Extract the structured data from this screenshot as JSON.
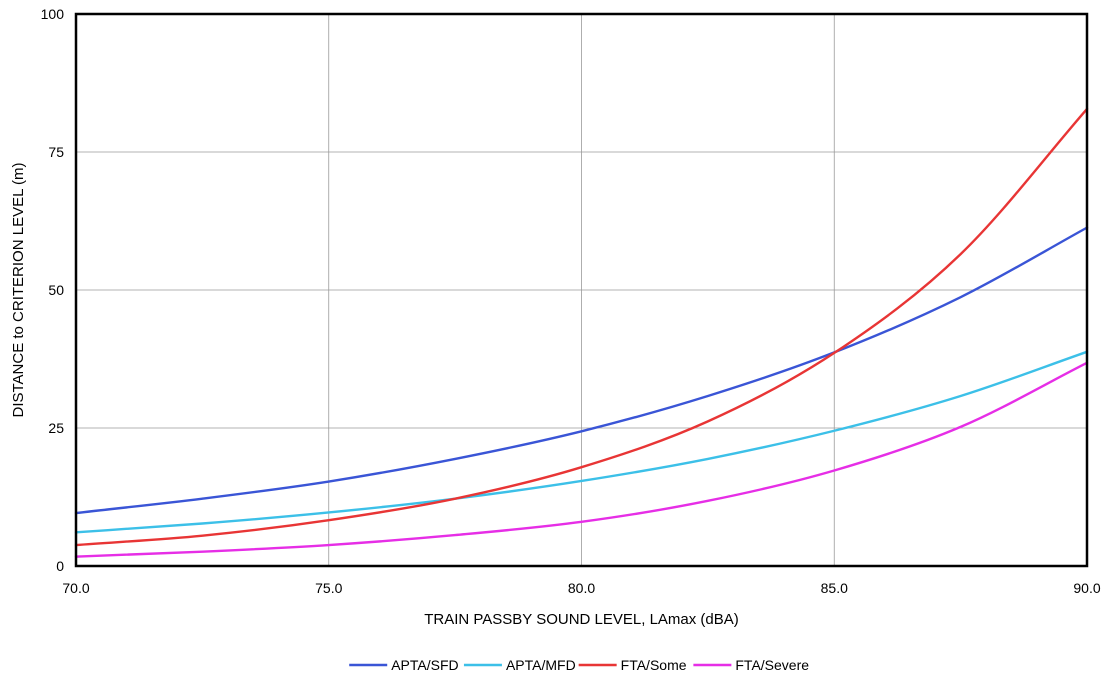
{
  "chart_data": {
    "type": "line",
    "title": "",
    "xlabel": "TRAIN PASSBY SOUND LEVEL, LAmax (dBA)",
    "ylabel": "DISTANCE to CRITERION LEVEL (m)",
    "xlim": [
      70,
      90
    ],
    "ylim": [
      0,
      100
    ],
    "xticks": [
      70,
      75,
      80,
      85,
      90
    ],
    "xtick_labels": [
      "70.0",
      "75.0",
      "80.0",
      "85.0",
      "90.0"
    ],
    "yticks": [
      0,
      25,
      50,
      75,
      100
    ],
    "ytick_labels": [
      "0",
      "25",
      "50",
      "75",
      "100"
    ],
    "grid": true,
    "legend_position": "bottom",
    "series": [
      {
        "name": "APTA/SFD",
        "color": "#3a55d6",
        "x": [
          70,
          72.5,
          75,
          77.5,
          80,
          82.5,
          85,
          87.5,
          90
        ],
        "y": [
          9.6,
          12.2,
          15.3,
          19.4,
          24.4,
          30.8,
          38.7,
          48.7,
          61.3
        ]
      },
      {
        "name": "APTA/MFD",
        "color": "#3cc0e8",
        "x": [
          70,
          72.5,
          75,
          77.5,
          80,
          82.5,
          85,
          87.5,
          90
        ],
        "y": [
          6.1,
          7.7,
          9.7,
          12.2,
          15.4,
          19.4,
          24.5,
          30.8,
          38.8
        ]
      },
      {
        "name": "FTA/Some",
        "color": "#e83535",
        "x": [
          70,
          72.5,
          75,
          77.5,
          80,
          82.5,
          85,
          87.5,
          90
        ],
        "y": [
          3.8,
          5.5,
          8.3,
          12.2,
          17.9,
          26.2,
          38.6,
          56.5,
          82.8
        ]
      },
      {
        "name": "FTA/Severe",
        "color": "#e62ee6",
        "x": [
          70,
          72.5,
          75,
          77.5,
          80,
          82.5,
          85,
          87.5,
          90
        ],
        "y": [
          1.7,
          2.6,
          3.8,
          5.6,
          8.0,
          11.8,
          17.3,
          25.2,
          36.8
        ]
      }
    ]
  }
}
